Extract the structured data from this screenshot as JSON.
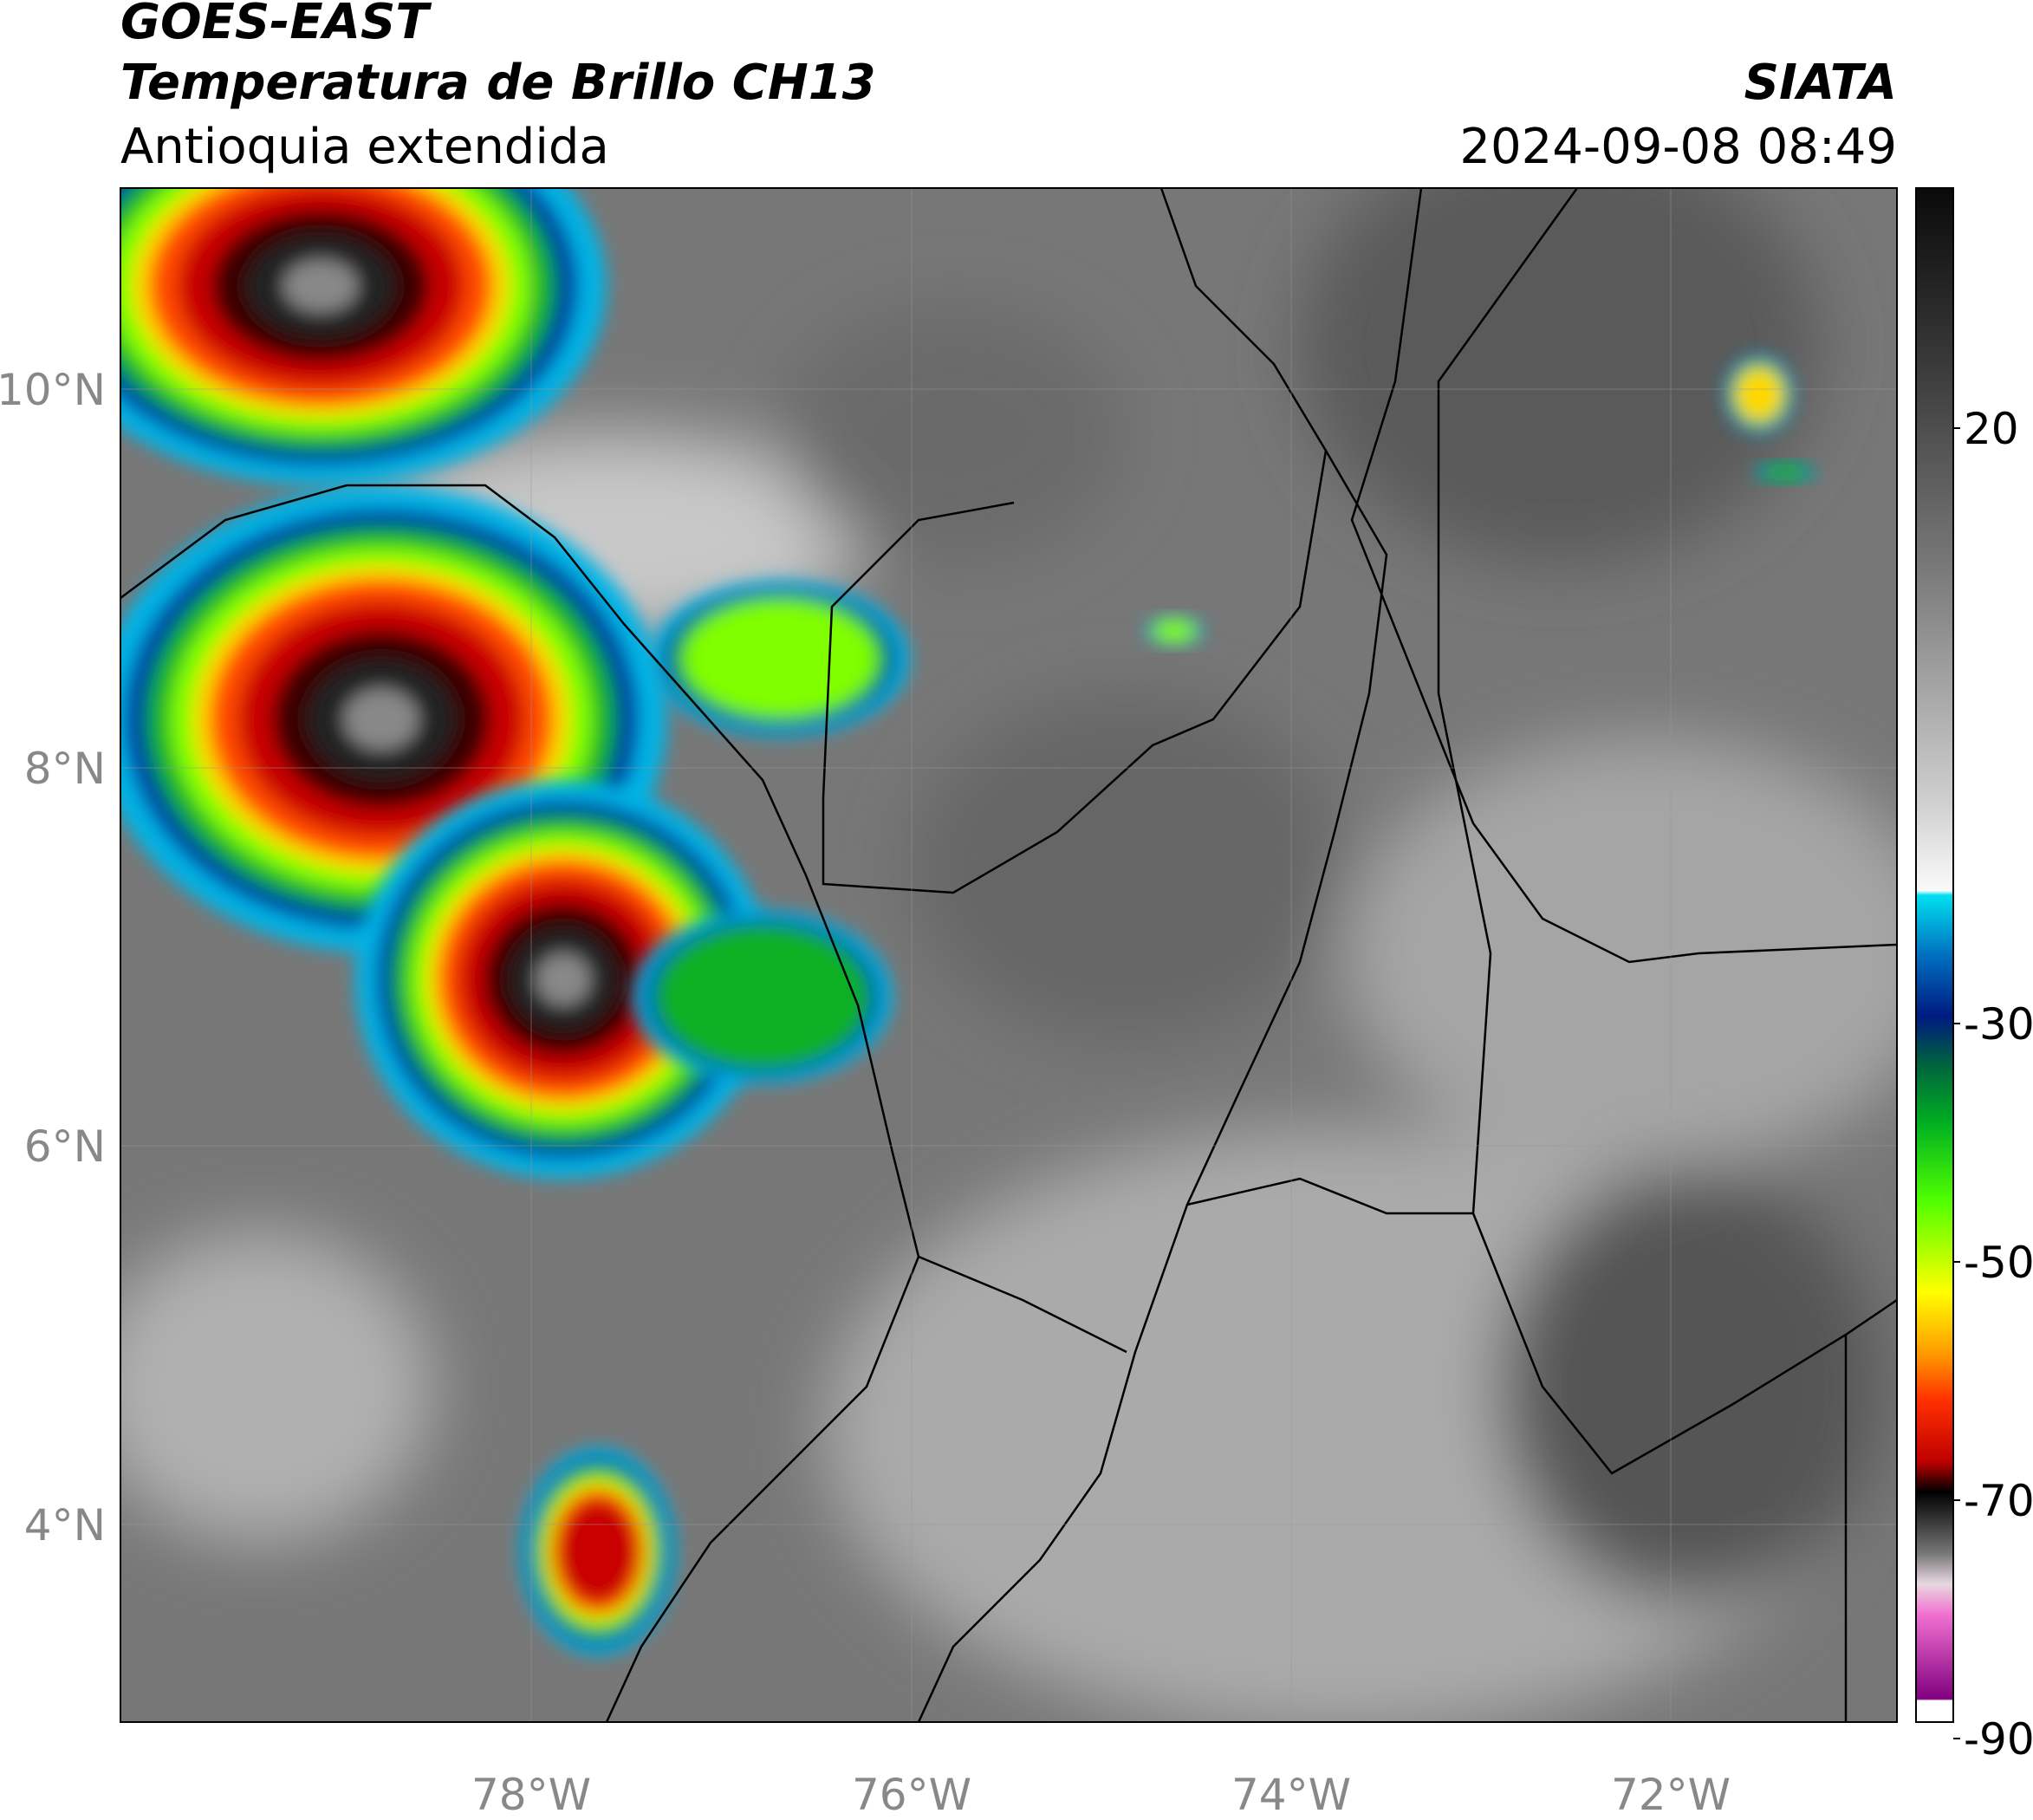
{
  "header": {
    "source": "GOES-EAST",
    "title": "Temperatura de Brillo CH13",
    "region": "Antioquia extendida",
    "agency": "SIATA",
    "datetime": "2024-09-08 08:49"
  },
  "map": {
    "lat_labels": [
      "10°N",
      "8°N",
      "6°N",
      "4°N"
    ],
    "lon_labels": [
      "78°W",
      "76°W",
      "74°W",
      "72°W"
    ]
  },
  "colorbar": {
    "tick_labels": [
      "20",
      "-30",
      "-50",
      "-70",
      "-90"
    ]
  }
}
